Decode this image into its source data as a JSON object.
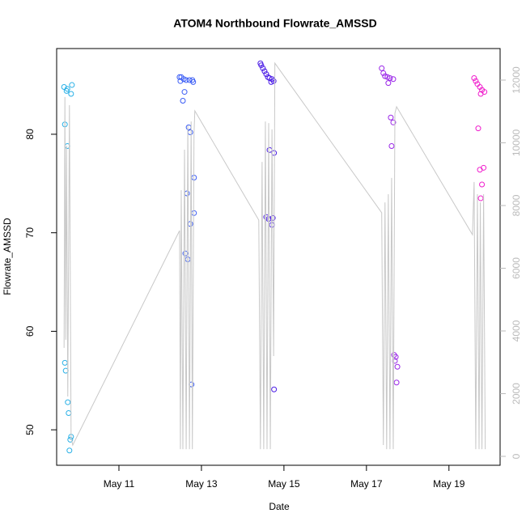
{
  "chart_data": {
    "type": "scatter",
    "title": "ATOM4 Northbound Flowrate_AMSSD",
    "xlabel": "Date",
    "ylabel": "Flowrate_AMSSD",
    "xlim": [
      9.49,
      20.24
    ],
    "xticks": [
      {
        "value": 11,
        "label": "May 11"
      },
      {
        "value": 13,
        "label": "May 13"
      },
      {
        "value": 15,
        "label": "May 15"
      },
      {
        "value": 17,
        "label": "May 17"
      },
      {
        "value": 19,
        "label": "May 19"
      }
    ],
    "ylim": [
      46.4,
      88.7
    ],
    "yticks": [
      50,
      60,
      70,
      80
    ],
    "y2lim": [
      -284,
      13006
    ],
    "y2ticks": [
      0,
      2000,
      4000,
      6000,
      8000,
      10000,
      12000
    ],
    "series": [
      {
        "color": "#29b0e6",
        "x": [
          9.67,
          9.75,
          9.73,
          9.86,
          9.84,
          9.69,
          9.75,
          9.69,
          9.71,
          9.76,
          9.78,
          9.84,
          9.82,
          9.8
        ],
        "values": [
          84.8,
          84.6,
          84.4,
          85.0,
          84.1,
          81.0,
          78.8,
          56.8,
          56.0,
          52.8,
          51.7,
          49.3,
          49.0,
          47.9
        ]
      },
      {
        "color": "#3a5cf5",
        "x": [
          12.47,
          12.51,
          12.49,
          12.57,
          12.63,
          12.71,
          12.78,
          12.8,
          12.55,
          12.59,
          12.73,
          12.69,
          12.82,
          12.65,
          12.82,
          12.73,
          12.61,
          12.67,
          12.76
        ],
        "values": [
          85.8,
          85.8,
          85.4,
          85.6,
          85.5,
          85.5,
          85.5,
          85.3,
          83.4,
          84.3,
          80.2,
          80.7,
          75.6,
          74.0,
          72.0,
          70.9,
          67.9,
          67.3,
          54.6
        ]
      },
      {
        "color": "#4b1ce6",
        "x": [
          14.43,
          14.45,
          14.49,
          14.53,
          14.57,
          14.61,
          14.65,
          14.71,
          14.75,
          14.69,
          14.65,
          14.76,
          14.57,
          14.63,
          14.73,
          14.71,
          14.76
        ],
        "values": [
          87.2,
          87.0,
          86.7,
          86.4,
          86.1,
          85.8,
          85.7,
          85.6,
          85.4,
          85.3,
          78.4,
          78.1,
          71.6,
          71.4,
          71.5,
          70.8,
          54.1
        ]
      },
      {
        "color": "#9a26e8",
        "x": [
          17.37,
          17.41,
          17.45,
          17.51,
          17.57,
          17.65,
          17.53,
          17.59,
          17.65,
          17.61,
          17.67,
          17.71,
          17.69,
          17.75,
          17.73
        ],
        "values": [
          86.7,
          86.2,
          85.9,
          85.8,
          85.7,
          85.6,
          85.2,
          81.7,
          81.2,
          78.8,
          57.6,
          57.4,
          57.0,
          56.4,
          54.8
        ]
      },
      {
        "color": "#f01ccc",
        "x": [
          19.61,
          19.65,
          19.69,
          19.75,
          19.8,
          19.86,
          19.77,
          19.71,
          19.75,
          19.84,
          19.8,
          19.77
        ],
        "values": [
          85.7,
          85.4,
          85.1,
          84.8,
          84.5,
          84.3,
          84.1,
          80.6,
          76.4,
          76.6,
          74.9,
          73.5
        ]
      },
      {
        "type": "line",
        "axis": "y2",
        "color": "#c8c8c8",
        "x": [
          9.67,
          9.69,
          9.71,
          9.73,
          9.76,
          9.8,
          9.84,
          9.88,
          12.47,
          12.49,
          12.51,
          12.55,
          12.59,
          12.63,
          12.67,
          12.71,
          12.75,
          12.78,
          12.82,
          12.84,
          14.39,
          14.43,
          14.47,
          14.51,
          14.55,
          14.59,
          14.63,
          14.67,
          14.71,
          14.75,
          14.78,
          17.37,
          17.41,
          17.45,
          17.49,
          17.53,
          17.57,
          17.61,
          17.65,
          17.69,
          17.73,
          19.57,
          19.61,
          19.65,
          19.69,
          19.73,
          19.76,
          19.8,
          19.84,
          19.88
        ],
        "values": [
          3460,
          11460,
          3720,
          9910,
          1910,
          11200,
          620,
          360,
          7200,
          230,
          8490,
          230,
          9780,
          230,
          10550,
          230,
          10680,
          230,
          10300,
          11020,
          7535,
          230,
          9390,
          230,
          10680,
          230,
          10630,
          230,
          10430,
          3200,
          12540,
          7770,
          360,
          8100,
          230,
          8360,
          230,
          8880,
          230,
          10940,
          11150,
          7070,
          8750,
          230,
          8360,
          230,
          8100,
          230,
          8360,
          230
        ]
      }
    ]
  }
}
